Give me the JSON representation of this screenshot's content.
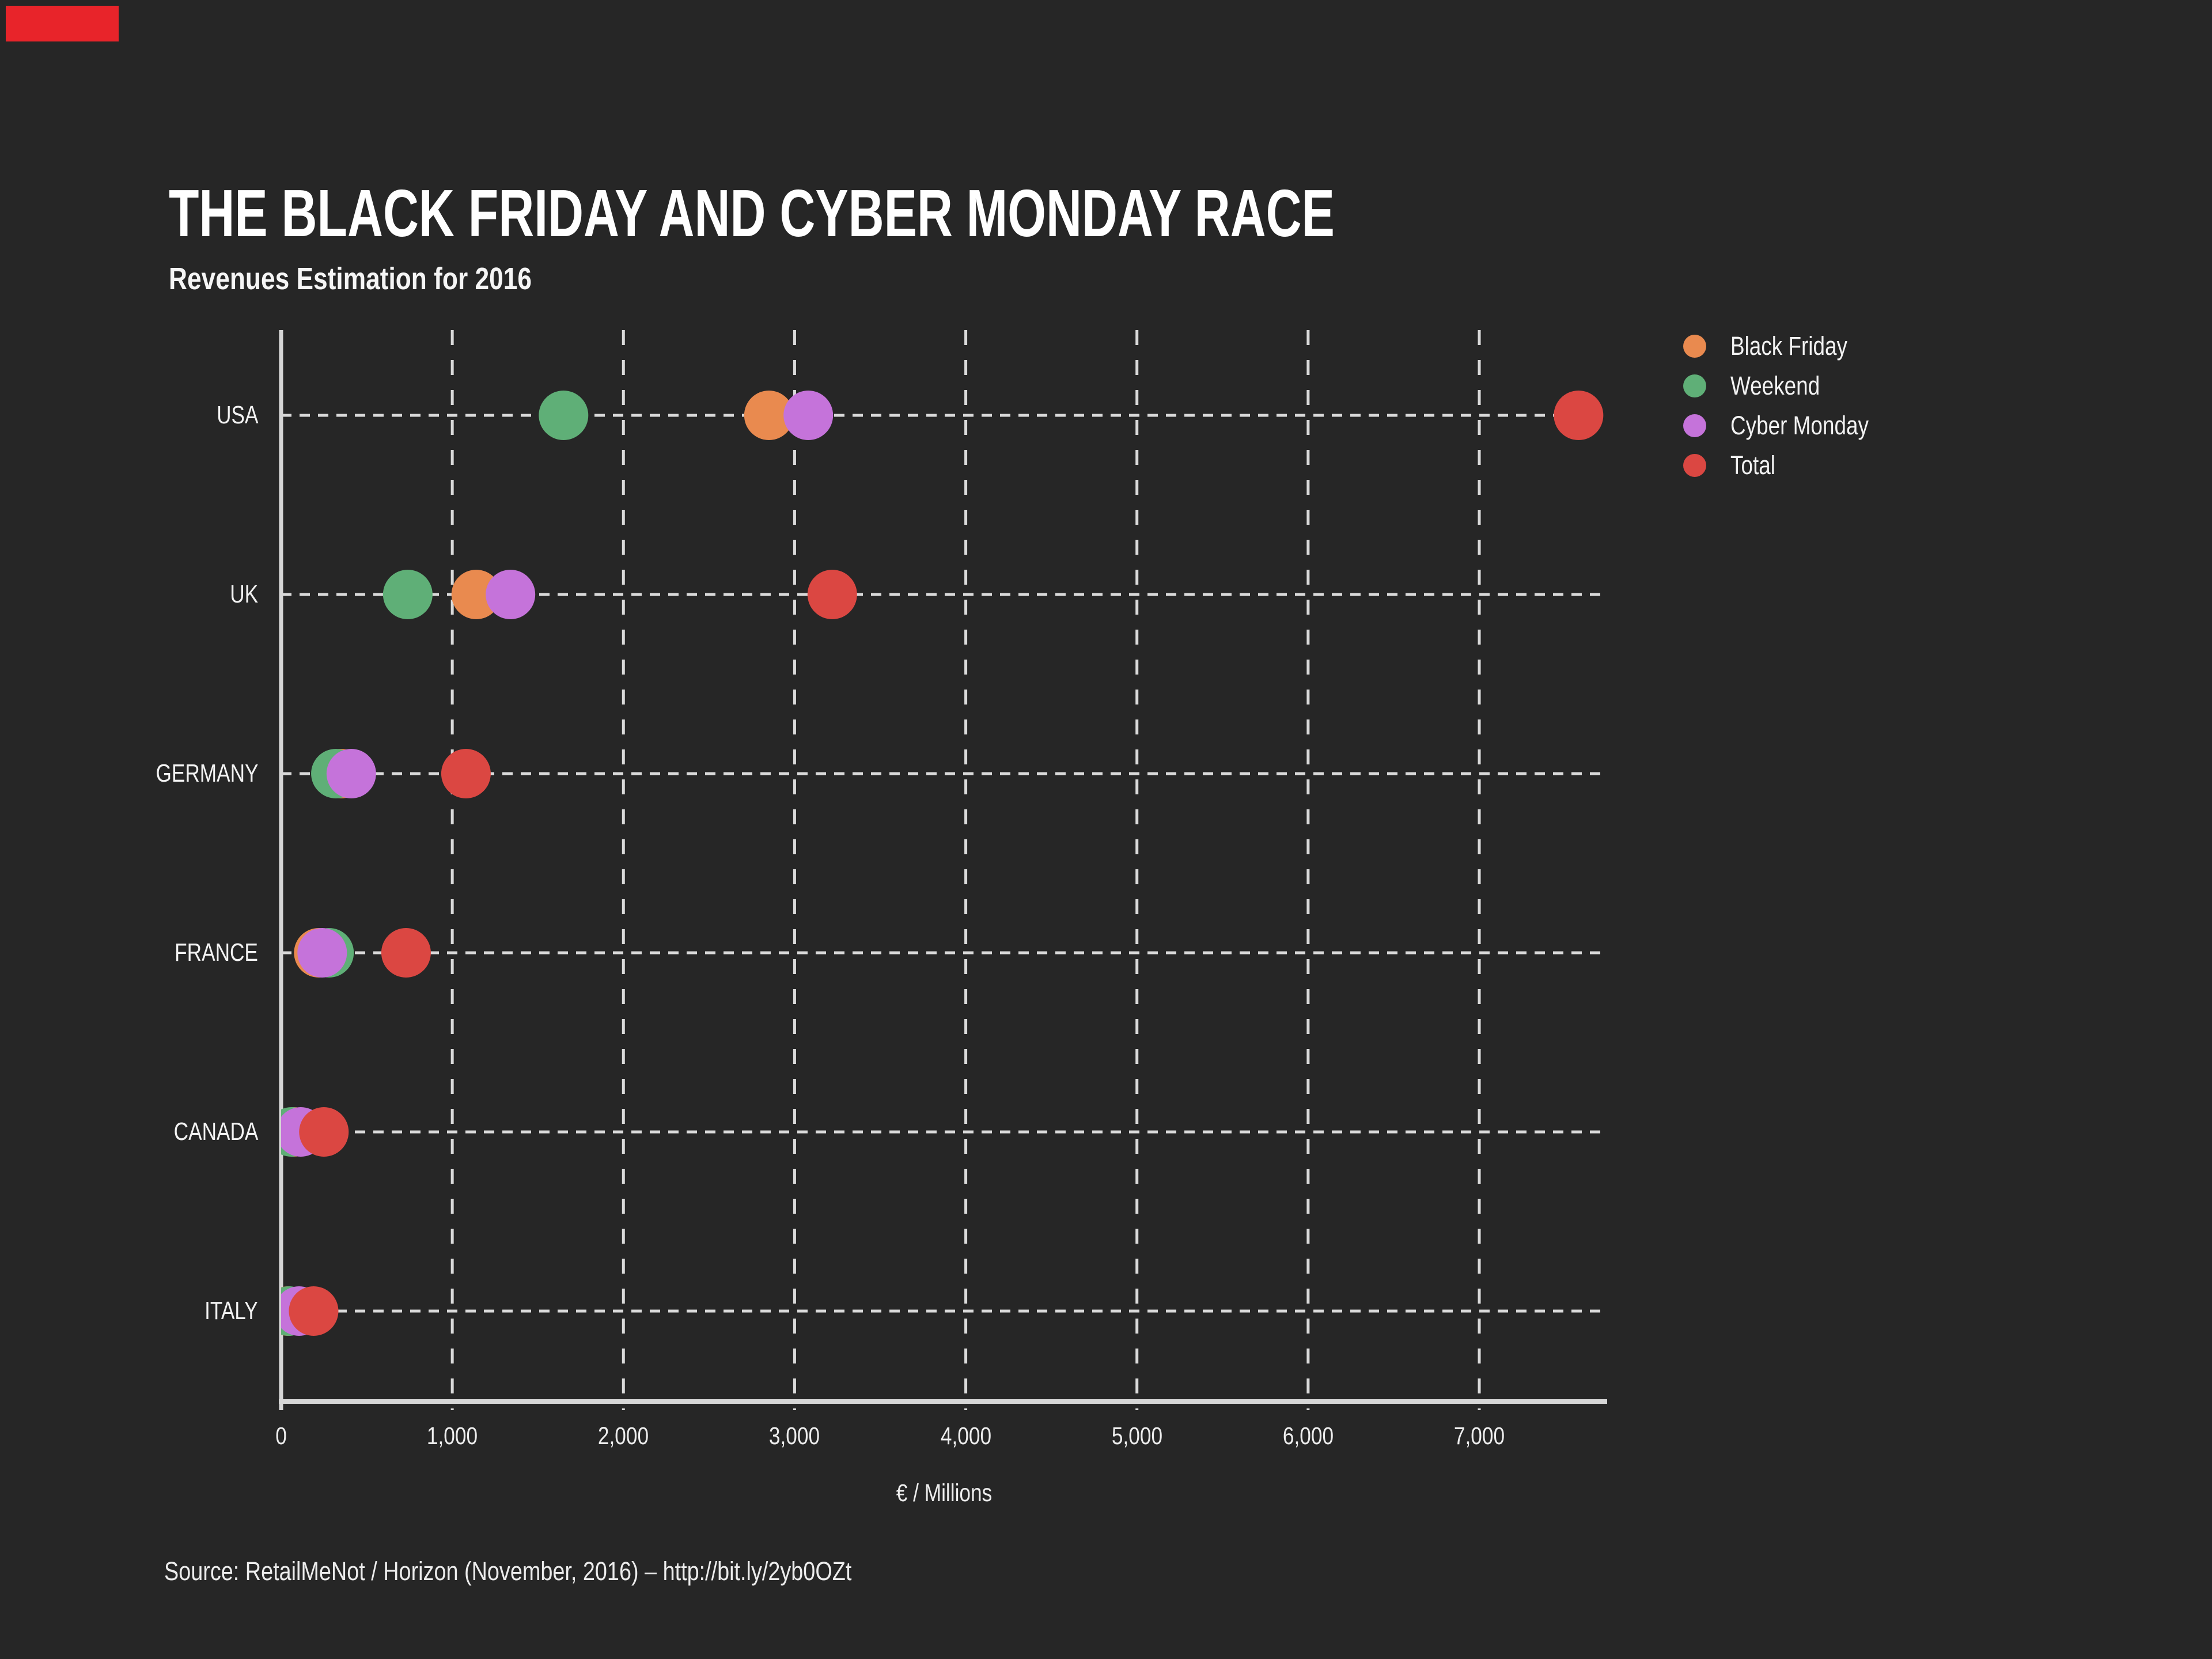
{
  "page": {
    "background_color": "#262626",
    "text_color": "#f2f2f2"
  },
  "corner_marker": {
    "color": "#e8242a"
  },
  "header": {
    "title": "THE BLACK FRIDAY AND CYBER MONDAY RACE",
    "subtitle": "Revenues Estimation for 2016"
  },
  "footer": {
    "source": "Source: RetailMeNot / Horizon (November, 2016) – http://bit.ly/2yb0OZt"
  },
  "chart_data": {
    "type": "scatter",
    "variant": "horizontal-dot-plot",
    "title": "THE BLACK FRIDAY AND CYBER MONDAY RACE",
    "subtitle": "Revenues Estimation for 2016",
    "categories": [
      "USA",
      "UK",
      "GERMANY",
      "FRANCE",
      "CANADA",
      "ITALY"
    ],
    "series": [
      {
        "name": "Black Friday",
        "color": "#e98a4f",
        "values": [
          2850,
          1140,
          350,
          220,
          75,
          40
        ]
      },
      {
        "name": "Weekend",
        "color": "#5faf77",
        "values": [
          1650,
          740,
          320,
          280,
          60,
          45
        ]
      },
      {
        "name": "Cyber Monday",
        "color": "#c573da",
        "values": [
          3080,
          1340,
          410,
          240,
          115,
          105
        ]
      },
      {
        "name": "Total",
        "color": "#db4742",
        "values": [
          7580,
          3220,
          1080,
          730,
          250,
          190
        ]
      }
    ],
    "xlabel": "€ / Millions",
    "ylabel": "",
    "x_ticks": [
      {
        "value": 0,
        "label": "0"
      },
      {
        "value": 1000,
        "label": "1,000"
      },
      {
        "value": 2000,
        "label": "2,000"
      },
      {
        "value": 3000,
        "label": "3,000"
      },
      {
        "value": 4000,
        "label": "4,000"
      },
      {
        "value": 5000,
        "label": "5,000"
      },
      {
        "value": 6000,
        "label": "6,000"
      },
      {
        "value": 7000,
        "label": "7,000"
      }
    ],
    "xlim": [
      0,
      7750
    ],
    "grid": "dashed",
    "gridline_color": "#d9d9d9",
    "axis_color": "#d6d6d6",
    "legend_position": "right-top",
    "units": "€ millions"
  }
}
